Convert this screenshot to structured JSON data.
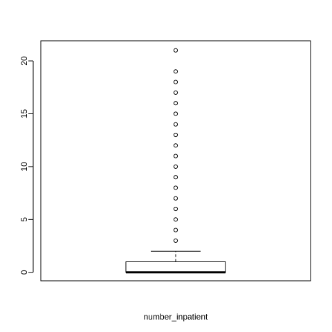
{
  "chart_data": {
    "type": "boxplot",
    "title": "",
    "xlabel": "number_inpatient",
    "ylabel": "",
    "ylim": [
      -0.8,
      21.9
    ],
    "yticks": [
      0,
      5,
      10,
      15,
      20
    ],
    "ytick_labels": [
      "0",
      "5",
      "10",
      "15",
      "20"
    ],
    "grid": false,
    "box": {
      "min_whisker": 0,
      "q1": 0,
      "median": 0,
      "q3": 1,
      "max_whisker": 2
    },
    "outliers": [
      3,
      4,
      5,
      6,
      7,
      8,
      9,
      10,
      11,
      12,
      13,
      14,
      15,
      16,
      17,
      18,
      19,
      21
    ],
    "colors": {
      "stroke": "#000000",
      "background": "#ffffff"
    }
  }
}
